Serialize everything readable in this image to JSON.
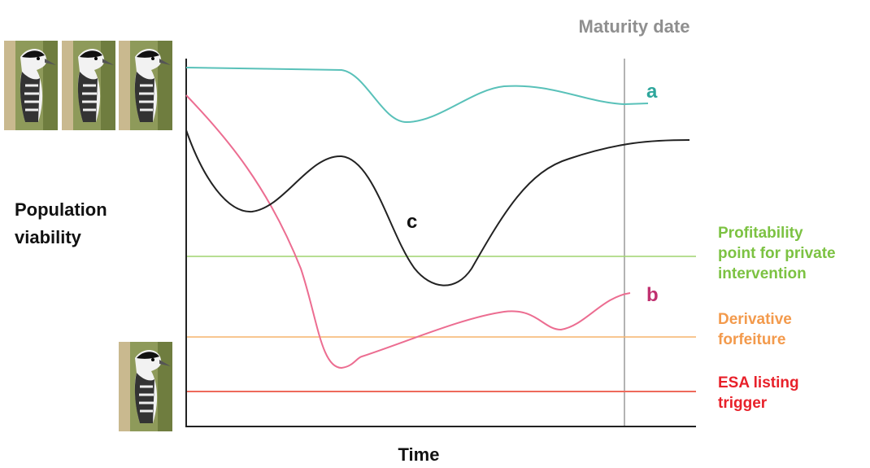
{
  "header": {
    "title": "Maturity date"
  },
  "axes": {
    "y_label": [
      "Population",
      "viability"
    ],
    "x_label": "Time"
  },
  "curves": [
    {
      "label": "a"
    },
    {
      "label": "b"
    },
    {
      "label": "c"
    }
  ],
  "thresholds": [
    {
      "label": [
        "Profitability",
        "point for private",
        "intervention"
      ]
    },
    {
      "label": [
        "Derivative",
        "forfeiture"
      ]
    },
    {
      "label": [
        "ESA listing",
        "trigger"
      ]
    }
  ]
}
